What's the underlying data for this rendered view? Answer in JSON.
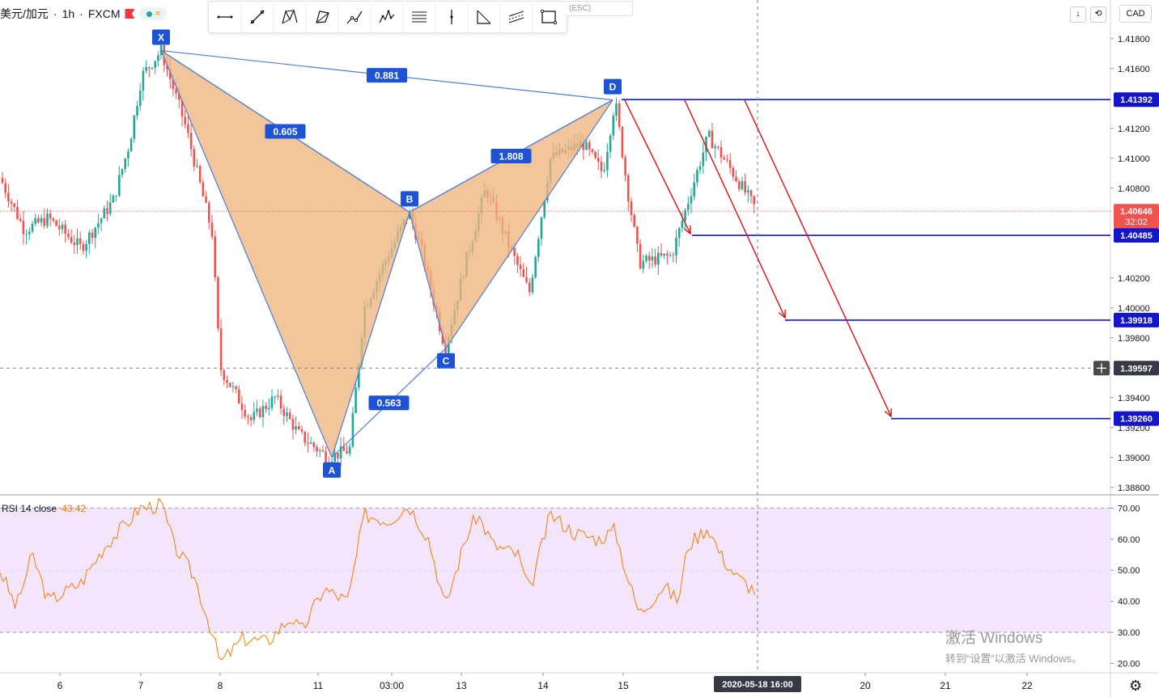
{
  "header": {
    "symbol": "美元/加元",
    "interval": "1h",
    "exchange": "FXCM",
    "sep": "·",
    "currency": "CAD",
    "esc_hint": "(ESC)"
  },
  "toolbar": {
    "tools": [
      "trend-line-icon",
      "ray-icon",
      "xabcd-pattern-icon",
      "triangle-pattern-icon",
      "path-icon",
      "elliott-wave-icon",
      "fib-lines-icon",
      "vertical-line-icon",
      "abc-pattern-icon",
      "channel-icon",
      "rectangle-icon"
    ]
  },
  "colors": {
    "up": "#26a69a",
    "down": "#ef5350",
    "pattern_fill": "#f0b57f",
    "pattern_stroke": "#4a7fd6",
    "label_bg": "#1e53d6",
    "level_line": "#1414c8",
    "arrow": "#e01010",
    "rsi_line": "#f57c00",
    "rsi_band": "#f3e5fb",
    "price_line": "#ef5350"
  },
  "chart_data": {
    "type": "candlestick",
    "symbol": "美元/加元",
    "price_axis": {
      "ticks": [
        "1.41800",
        "1.41600",
        "1.41200",
        "1.41000",
        "1.40800",
        "1.40200",
        "1.40000",
        "1.39800",
        "1.39400",
        "1.39200",
        "1.39000",
        "1.38800"
      ],
      "range": [
        1.3875,
        1.4195
      ]
    },
    "time_axis": {
      "ticks": [
        "6",
        "7",
        "8",
        "11",
        "03:00",
        "13",
        "14",
        "15",
        "20",
        "21",
        "22"
      ],
      "cursor_label": "2020-05-18 16:00"
    },
    "current_price": {
      "value": "1.40646",
      "countdown": "32:02"
    },
    "crosshair_price": "1.39597",
    "harmonic_pattern": {
      "points": [
        {
          "name": "X",
          "price": 1.4172
        },
        {
          "name": "A",
          "price": 1.39
        },
        {
          "name": "B",
          "price": 1.4064
        },
        {
          "name": "C",
          "price": 1.3973
        },
        {
          "name": "D",
          "price": 1.4139
        }
      ],
      "ratios": [
        {
          "leg": "XB",
          "value": "0.605"
        },
        {
          "leg": "XD",
          "value": "0.881"
        },
        {
          "leg": "BD",
          "value": "1.808"
        },
        {
          "leg": "AC",
          "value": "0.563"
        }
      ]
    },
    "levels": [
      {
        "price": "1.41392",
        "value": 1.41392
      },
      {
        "price": "1.40485",
        "value": 1.40485
      },
      {
        "price": "1.39918",
        "value": 1.39918
      },
      {
        "price": "1.39260",
        "value": 1.3926
      }
    ],
    "rsi": {
      "label": "RSI 14 close",
      "value": "43.42",
      "ticks": [
        "70.00",
        "60.00",
        "50.00",
        "40.00",
        "30.00",
        "20.00"
      ],
      "upper": 70,
      "lower": 30,
      "range": [
        17,
        74
      ]
    }
  },
  "watermark": {
    "line1": "激活 Windows",
    "line2": "转到“设置”以激活 Windows。"
  }
}
